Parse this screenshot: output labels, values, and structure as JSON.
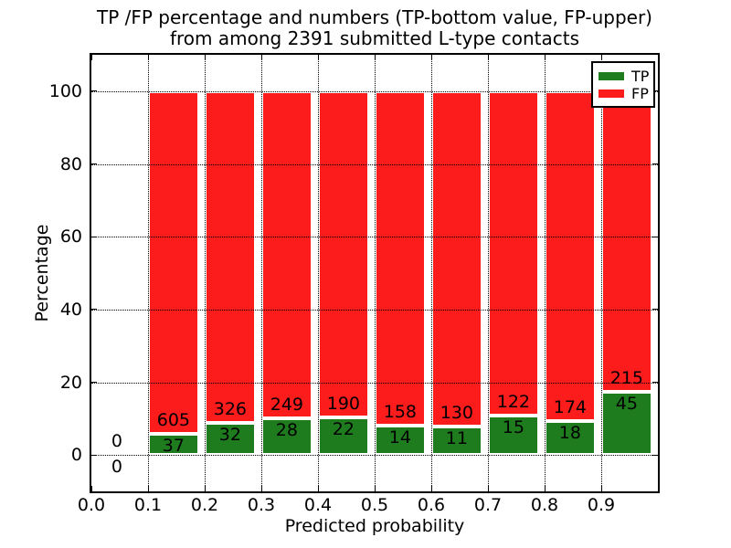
{
  "title": {
    "line1": "TP /FP percentage and numbers (TP-bottom value, FP-upper)",
    "line2": "from among 2391 submitted L-type contacts"
  },
  "chart_data": {
    "type": "bar",
    "stacked": true,
    "units": "percent",
    "title": "TP /FP percentage and numbers (TP-bottom value, FP-upper) from among 2391 submitted L-type contacts",
    "xlabel": "Predicted probability",
    "ylabel": "Percentage",
    "xlim": [
      0.0,
      1.0
    ],
    "ylim": [
      -10,
      110
    ],
    "bar_width": 0.09,
    "bar_align": "edge",
    "grid": "dotted",
    "grid_above_bars": true,
    "colors": {
      "tp": "#1e7c1e",
      "fp": "#fd1c1c",
      "bar_edge": "#ffffff",
      "grid": "#000000"
    },
    "xticks": [
      {
        "v": 0.0,
        "label": "0.0"
      },
      {
        "v": 0.1,
        "label": "0.1"
      },
      {
        "v": 0.2,
        "label": "0.2"
      },
      {
        "v": 0.3,
        "label": "0.3"
      },
      {
        "v": 0.4,
        "label": "0.4"
      },
      {
        "v": 0.5,
        "label": "0.5"
      },
      {
        "v": 0.6,
        "label": "0.6"
      },
      {
        "v": 0.7,
        "label": "0.7"
      },
      {
        "v": 0.8,
        "label": "0.8"
      },
      {
        "v": 0.9,
        "label": "0.9"
      }
    ],
    "yticks": [
      {
        "v": 0,
        "label": "0"
      },
      {
        "v": 20,
        "label": "20"
      },
      {
        "v": 40,
        "label": "40"
      },
      {
        "v": 60,
        "label": "60"
      },
      {
        "v": 80,
        "label": "80"
      },
      {
        "v": 100,
        "label": "100"
      }
    ],
    "legend": {
      "position": "upper right",
      "entries": [
        {
          "label": "TP",
          "color": "#1e7c1e"
        },
        {
          "label": "FP",
          "color": "#fd1c1c"
        }
      ]
    },
    "bins": [
      {
        "x_start": 0.0,
        "tp_count": 0,
        "fp_count": 0,
        "tp_pct": 0.0,
        "fp_pct": 0.0
      },
      {
        "x_start": 0.1,
        "tp_count": 37,
        "fp_count": 605,
        "tp_pct": 5.76,
        "fp_pct": 94.24
      },
      {
        "x_start": 0.2,
        "tp_count": 32,
        "fp_count": 326,
        "tp_pct": 8.94,
        "fp_pct": 91.06
      },
      {
        "x_start": 0.3,
        "tp_count": 28,
        "fp_count": 249,
        "tp_pct": 10.11,
        "fp_pct": 89.89
      },
      {
        "x_start": 0.4,
        "tp_count": 22,
        "fp_count": 190,
        "tp_pct": 10.38,
        "fp_pct": 89.62
      },
      {
        "x_start": 0.5,
        "tp_count": 14,
        "fp_count": 158,
        "tp_pct": 8.14,
        "fp_pct": 91.86
      },
      {
        "x_start": 0.6,
        "tp_count": 11,
        "fp_count": 130,
        "tp_pct": 7.8,
        "fp_pct": 92.2
      },
      {
        "x_start": 0.7,
        "tp_count": 15,
        "fp_count": 122,
        "tp_pct": 10.95,
        "fp_pct": 89.05
      },
      {
        "x_start": 0.8,
        "tp_count": 18,
        "fp_count": 174,
        "tp_pct": 9.38,
        "fp_pct": 90.62
      },
      {
        "x_start": 0.9,
        "tp_count": 45,
        "fp_count": 215,
        "tp_pct": 17.31,
        "fp_pct": 82.69
      }
    ]
  }
}
